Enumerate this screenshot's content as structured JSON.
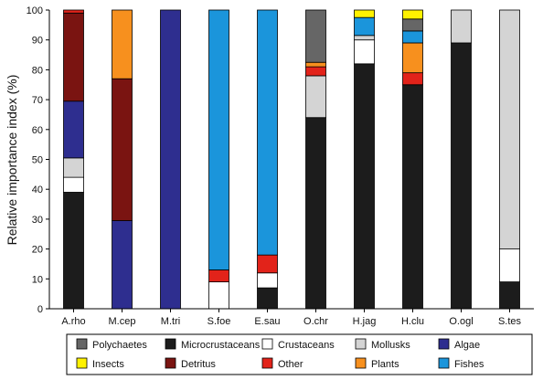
{
  "chart_data": {
    "type": "bar",
    "stacked": true,
    "title": "",
    "xlabel": "",
    "ylabel": "Relative importance index (%)",
    "ylim": [
      0,
      100
    ],
    "yticks": [
      0,
      10,
      20,
      30,
      40,
      50,
      60,
      70,
      80,
      90,
      100
    ],
    "grid": false,
    "legend_position": "bottom",
    "categories": [
      "A.rho",
      "M.cep",
      "M.tri",
      "S.foe",
      "E.sau",
      "O.chr",
      "H.jag",
      "H.clu",
      "O.ogl",
      "S.tes"
    ],
    "series": [
      {
        "name": "Microcrustaceans",
        "color": "#1c1c1c",
        "values": [
          39,
          0,
          0,
          0,
          7,
          64,
          82,
          75,
          89,
          9
        ]
      },
      {
        "name": "Crustaceans",
        "color": "#ffffff",
        "values": [
          5,
          0,
          0,
          9,
          5,
          0,
          8,
          0,
          0,
          11
        ]
      },
      {
        "name": "Mollusks",
        "color": "#d4d4d4",
        "values": [
          6.5,
          0,
          0,
          0,
          0,
          14,
          1.5,
          0,
          11,
          80
        ]
      },
      {
        "name": "Algae",
        "color": "#2e2e8f",
        "values": [
          19,
          29.5,
          100,
          0,
          0,
          0,
          0,
          0,
          0,
          0
        ]
      },
      {
        "name": "Detritus",
        "color": "#7a1411",
        "values": [
          29.5,
          47.5,
          0,
          0,
          0,
          0,
          0,
          0,
          0,
          0
        ]
      },
      {
        "name": "Other",
        "color": "#e2231a",
        "values": [
          1,
          0,
          0,
          4,
          6,
          3,
          0,
          4,
          0,
          0
        ]
      },
      {
        "name": "Plants",
        "color": "#f7901e",
        "values": [
          0,
          23,
          0,
          0,
          0,
          1.5,
          0,
          10,
          0,
          0
        ]
      },
      {
        "name": "Fishes",
        "color": "#1b95db",
        "values": [
          0,
          0,
          0,
          87,
          82,
          0,
          6,
          4,
          0,
          0
        ]
      },
      {
        "name": "Polychaetes",
        "color": "#666666",
        "values": [
          0,
          0,
          0,
          0,
          0,
          17.5,
          0,
          4,
          0,
          0
        ]
      },
      {
        "name": "Insects",
        "color": "#fff200",
        "values": [
          0,
          0,
          0,
          0,
          0,
          0,
          2.5,
          3,
          0,
          0
        ]
      }
    ],
    "legend": [
      {
        "name": "Polychaetes",
        "color": "#666666"
      },
      {
        "name": "Microcrustaceans",
        "color": "#1c1c1c"
      },
      {
        "name": "Crustaceans",
        "color": "#ffffff"
      },
      {
        "name": "Mollusks",
        "color": "#d4d4d4"
      },
      {
        "name": "Algae",
        "color": "#2e2e8f"
      },
      {
        "name": "Insects",
        "color": "#fff200"
      },
      {
        "name": "Detritus",
        "color": "#7a1411"
      },
      {
        "name": "Other",
        "color": "#e2231a"
      },
      {
        "name": "Plants",
        "color": "#f7901e"
      },
      {
        "name": "Fishes",
        "color": "#1b95db"
      }
    ]
  }
}
